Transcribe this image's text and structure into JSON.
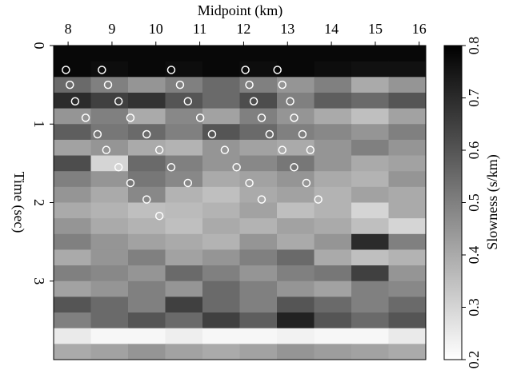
{
  "chart_data": {
    "type": "heatmap",
    "xlabel": "Midpoint (km)",
    "ylabel": "Time (sec)",
    "colorbar_label": "Slowness (s/km)",
    "xlim": [
      7.67,
      16.15
    ],
    "ylim": [
      0,
      4
    ],
    "xticks": [
      8,
      9,
      10,
      11,
      12,
      13,
      14,
      15,
      16
    ],
    "yticks": [
      0,
      1,
      2,
      3
    ],
    "clim": [
      0.2,
      0.8
    ],
    "cticks": [
      0.2,
      0.3,
      0.4,
      0.5,
      0.6,
      0.7,
      0.8
    ],
    "colormap": "gray-reversed",
    "xbins": [
      7.67,
      8.518,
      9.366,
      10.214,
      11.062,
      11.91,
      12.758,
      13.606,
      14.454,
      15.302,
      16.15
    ],
    "ybins": [
      0,
      0.2,
      0.4,
      0.6,
      0.8,
      1.0,
      1.2,
      1.4,
      1.6,
      1.8,
      2.0,
      2.2,
      2.4,
      2.6,
      2.8,
      3.0,
      3.2,
      3.4,
      3.6,
      3.8,
      4.0
    ],
    "values": [
      [
        0.78,
        0.78,
        0.78,
        0.78,
        0.78,
        0.78,
        0.78,
        0.78,
        0.78,
        0.78
      ],
      [
        0.78,
        0.77,
        0.78,
        0.77,
        0.78,
        0.77,
        0.78,
        0.77,
        0.76,
        0.76
      ],
      [
        0.55,
        0.5,
        0.45,
        0.5,
        0.55,
        0.5,
        0.45,
        0.5,
        0.4,
        0.45
      ],
      [
        0.7,
        0.65,
        0.68,
        0.6,
        0.55,
        0.62,
        0.5,
        0.58,
        0.55,
        0.6
      ],
      [
        0.45,
        0.5,
        0.4,
        0.48,
        0.42,
        0.5,
        0.45,
        0.4,
        0.35,
        0.42
      ],
      [
        0.58,
        0.52,
        0.55,
        0.5,
        0.6,
        0.55,
        0.5,
        0.48,
        0.45,
        0.5
      ],
      [
        0.42,
        0.45,
        0.4,
        0.38,
        0.45,
        0.42,
        0.4,
        0.45,
        0.5,
        0.45
      ],
      [
        0.62,
        0.3,
        0.55,
        0.5,
        0.45,
        0.48,
        0.52,
        0.45,
        0.4,
        0.42
      ],
      [
        0.5,
        0.45,
        0.52,
        0.48,
        0.4,
        0.42,
        0.45,
        0.4,
        0.38,
        0.45
      ],
      [
        0.45,
        0.4,
        0.48,
        0.38,
        0.35,
        0.4,
        0.42,
        0.38,
        0.42,
        0.4
      ],
      [
        0.4,
        0.38,
        0.35,
        0.36,
        0.38,
        0.42,
        0.35,
        0.38,
        0.3,
        0.4
      ],
      [
        0.45,
        0.4,
        0.38,
        0.35,
        0.4,
        0.38,
        0.42,
        0.4,
        0.35,
        0.3
      ],
      [
        0.5,
        0.45,
        0.42,
        0.4,
        0.38,
        0.45,
        0.4,
        0.45,
        0.7,
        0.5
      ],
      [
        0.4,
        0.45,
        0.5,
        0.42,
        0.45,
        0.5,
        0.55,
        0.4,
        0.35,
        0.38
      ],
      [
        0.5,
        0.48,
        0.45,
        0.55,
        0.5,
        0.45,
        0.5,
        0.52,
        0.65,
        0.45
      ],
      [
        0.42,
        0.45,
        0.5,
        0.45,
        0.55,
        0.5,
        0.45,
        0.42,
        0.5,
        0.48
      ],
      [
        0.6,
        0.55,
        0.5,
        0.65,
        0.55,
        0.5,
        0.6,
        0.55,
        0.5,
        0.55
      ],
      [
        0.5,
        0.55,
        0.6,
        0.55,
        0.65,
        0.58,
        0.72,
        0.6,
        0.55,
        0.6
      ],
      [
        0.25,
        0.22,
        0.22,
        0.24,
        0.22,
        0.22,
        0.23,
        0.22,
        0.22,
        0.25
      ],
      [
        0.4,
        0.42,
        0.45,
        0.42,
        0.4,
        0.42,
        0.45,
        0.43,
        0.42,
        0.4
      ]
    ],
    "markers": {
      "color": "#ffffff",
      "x": [
        7.95,
        8.77,
        10.35,
        12.04,
        12.77,
        8.04,
        8.91,
        10.55,
        12.13,
        12.88,
        8.16,
        9.15,
        10.73,
        12.23,
        13.06,
        8.4,
        9.42,
        11.01,
        12.41,
        13.15,
        8.67,
        9.79,
        11.28,
        12.59,
        13.34,
        8.87,
        10.08,
        11.57,
        12.88,
        13.52,
        9.15,
        10.35,
        11.84,
        13.15,
        9.42,
        10.73,
        12.13,
        13.43,
        9.79,
        12.41,
        13.7,
        10.08
      ],
      "y": [
        0.31,
        0.31,
        0.31,
        0.31,
        0.31,
        0.5,
        0.5,
        0.5,
        0.5,
        0.5,
        0.71,
        0.71,
        0.71,
        0.71,
        0.71,
        0.92,
        0.92,
        0.92,
        0.92,
        0.92,
        1.13,
        1.13,
        1.13,
        1.13,
        1.13,
        1.33,
        1.33,
        1.33,
        1.33,
        1.33,
        1.55,
        1.55,
        1.55,
        1.55,
        1.75,
        1.75,
        1.75,
        1.75,
        1.96,
        1.96,
        1.96,
        2.17
      ]
    }
  }
}
